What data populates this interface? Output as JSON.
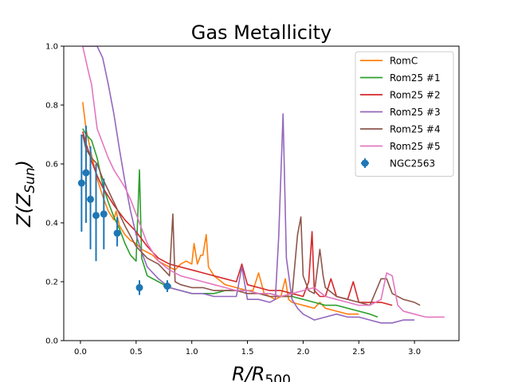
{
  "chart_data": {
    "type": "line",
    "title": "Gas Metallicity",
    "xlabel": "R/R500",
    "ylabel": "Z(Zsun)",
    "xlim": [
      -0.15,
      3.4
    ],
    "ylim": [
      0.0,
      1.0
    ],
    "xticks": [
      0.0,
      0.5,
      1.0,
      1.5,
      2.0,
      2.5,
      3.0
    ],
    "xtick_labels": [
      "0.0",
      "0.5",
      "1.0",
      "1.5",
      "2.0",
      "2.5",
      "3.0"
    ],
    "yticks": [
      0.0,
      0.2,
      0.4,
      0.6,
      0.8,
      1.0
    ],
    "ytick_labels": [
      "0.0",
      "0.2",
      "0.4",
      "0.6",
      "0.8",
      "1.0"
    ],
    "grid": false,
    "legend_position": "top-right",
    "series": [
      {
        "name": "RomC",
        "color": "#ff7f0e",
        "x": [
          0.02,
          0.05,
          0.1,
          0.15,
          0.2,
          0.25,
          0.3,
          0.32,
          0.35,
          0.4,
          0.45,
          0.5,
          0.55,
          0.6,
          0.65,
          0.7,
          0.75,
          0.8,
          0.85,
          0.9,
          0.95,
          1.0,
          1.02,
          1.05,
          1.08,
          1.1,
          1.13,
          1.15,
          1.2,
          1.3,
          1.4,
          1.5,
          1.55,
          1.6,
          1.65,
          1.7,
          1.75,
          1.8,
          1.84,
          1.87,
          1.9,
          2.0,
          2.1,
          2.15,
          2.2,
          2.3,
          2.4,
          2.5
        ],
        "y": [
          0.81,
          0.72,
          0.63,
          0.55,
          0.49,
          0.44,
          0.41,
          0.44,
          0.39,
          0.36,
          0.34,
          0.33,
          0.31,
          0.3,
          0.29,
          0.27,
          0.26,
          0.25,
          0.24,
          0.26,
          0.27,
          0.26,
          0.33,
          0.26,
          0.29,
          0.29,
          0.36,
          0.25,
          0.22,
          0.19,
          0.18,
          0.17,
          0.17,
          0.23,
          0.16,
          0.15,
          0.14,
          0.15,
          0.21,
          0.14,
          0.13,
          0.12,
          0.11,
          0.13,
          0.11,
          0.1,
          0.09,
          0.09
        ]
      },
      {
        "name": "Rom25 #1",
        "color": "#2ca02c",
        "x": [
          0.02,
          0.05,
          0.1,
          0.15,
          0.2,
          0.25,
          0.3,
          0.35,
          0.4,
          0.45,
          0.5,
          0.53,
          0.55,
          0.6,
          0.7,
          0.8,
          0.9,
          1.0,
          1.1,
          1.2,
          1.3,
          1.4,
          1.5,
          1.6,
          1.7,
          1.8,
          1.9,
          2.0,
          2.1,
          2.2,
          2.3,
          2.4,
          2.5,
          2.6,
          2.67
        ],
        "y": [
          0.72,
          0.7,
          0.68,
          0.62,
          0.53,
          0.47,
          0.42,
          0.38,
          0.33,
          0.29,
          0.27,
          0.58,
          0.28,
          0.22,
          0.2,
          0.18,
          0.17,
          0.16,
          0.16,
          0.16,
          0.17,
          0.17,
          0.17,
          0.16,
          0.16,
          0.15,
          0.15,
          0.14,
          0.13,
          0.12,
          0.12,
          0.11,
          0.1,
          0.09,
          0.08
        ]
      },
      {
        "name": "Rom25 #2",
        "color": "#d62728",
        "x": [
          0.02,
          0.05,
          0.1,
          0.15,
          0.2,
          0.3,
          0.4,
          0.5,
          0.6,
          0.7,
          0.8,
          0.9,
          1.0,
          1.1,
          1.2,
          1.3,
          1.4,
          1.45,
          1.5,
          1.6,
          1.7,
          1.8,
          1.9,
          2.0,
          2.05,
          2.08,
          2.1,
          2.15,
          2.2,
          2.25,
          2.3,
          2.4,
          2.45,
          2.5,
          2.6,
          2.7,
          2.8
        ],
        "y": [
          0.71,
          0.67,
          0.61,
          0.56,
          0.52,
          0.46,
          0.41,
          0.37,
          0.32,
          0.28,
          0.26,
          0.25,
          0.24,
          0.23,
          0.22,
          0.21,
          0.2,
          0.26,
          0.19,
          0.18,
          0.17,
          0.17,
          0.16,
          0.15,
          0.2,
          0.37,
          0.17,
          0.15,
          0.15,
          0.21,
          0.15,
          0.14,
          0.2,
          0.13,
          0.13,
          0.13,
          0.12
        ]
      },
      {
        "name": "Rom25 #3",
        "color": "#9467bd",
        "x": [
          0.02,
          0.05,
          0.1,
          0.15,
          0.2,
          0.25,
          0.3,
          0.35,
          0.4,
          0.45,
          0.5,
          0.55,
          0.6,
          0.7,
          0.8,
          0.9,
          1.0,
          1.1,
          1.2,
          1.3,
          1.4,
          1.45,
          1.5,
          1.6,
          1.7,
          1.75,
          1.78,
          1.82,
          1.85,
          1.9,
          1.95,
          2.0,
          2.1,
          2.2,
          2.3,
          2.4,
          2.5,
          2.6,
          2.7,
          2.8,
          2.9,
          3.0
        ],
        "y": [
          1.0,
          1.0,
          1.0,
          1.0,
          0.96,
          0.87,
          0.77,
          0.65,
          0.54,
          0.44,
          0.36,
          0.3,
          0.25,
          0.21,
          0.18,
          0.17,
          0.16,
          0.16,
          0.15,
          0.15,
          0.15,
          0.25,
          0.14,
          0.14,
          0.13,
          0.14,
          0.35,
          0.77,
          0.28,
          0.14,
          0.11,
          0.09,
          0.07,
          0.08,
          0.09,
          0.08,
          0.08,
          0.07,
          0.06,
          0.06,
          0.07,
          0.07
        ]
      },
      {
        "name": "Rom25 #4",
        "color": "#8c564b",
        "x": [
          0.02,
          0.05,
          0.1,
          0.15,
          0.2,
          0.3,
          0.4,
          0.5,
          0.6,
          0.7,
          0.8,
          0.83,
          0.85,
          0.9,
          1.0,
          1.1,
          1.2,
          1.3,
          1.4,
          1.5,
          1.6,
          1.7,
          1.8,
          1.9,
          1.95,
          1.98,
          2.0,
          2.05,
          2.1,
          2.15,
          2.18,
          2.2,
          2.3,
          2.4,
          2.5,
          2.6,
          2.7,
          2.75,
          2.8,
          2.9,
          3.0,
          3.05
        ],
        "y": [
          0.7,
          0.65,
          0.62,
          0.6,
          0.55,
          0.47,
          0.39,
          0.32,
          0.28,
          0.26,
          0.22,
          0.43,
          0.2,
          0.19,
          0.18,
          0.18,
          0.17,
          0.17,
          0.17,
          0.16,
          0.16,
          0.15,
          0.15,
          0.15,
          0.36,
          0.42,
          0.22,
          0.17,
          0.16,
          0.31,
          0.22,
          0.18,
          0.15,
          0.14,
          0.13,
          0.12,
          0.21,
          0.21,
          0.16,
          0.14,
          0.13,
          0.12
        ]
      },
      {
        "name": "Rom25 #5",
        "color": "#e377c2",
        "x": [
          0.02,
          0.05,
          0.08,
          0.1,
          0.15,
          0.2,
          0.25,
          0.3,
          0.35,
          0.4,
          0.45,
          0.5,
          0.55,
          0.6,
          0.7,
          0.8,
          0.9,
          1.0,
          1.1,
          1.2,
          1.3,
          1.4,
          1.5,
          1.6,
          1.7,
          1.8,
          1.9,
          2.0,
          2.1,
          2.2,
          2.3,
          2.4,
          2.5,
          2.6,
          2.7,
          2.75,
          2.8,
          2.85,
          2.9,
          3.0,
          3.1,
          3.2,
          3.27
        ],
        "y": [
          1.0,
          0.95,
          0.9,
          0.87,
          0.72,
          0.67,
          0.62,
          0.58,
          0.55,
          0.52,
          0.48,
          0.43,
          0.38,
          0.33,
          0.27,
          0.24,
          0.22,
          0.21,
          0.2,
          0.19,
          0.18,
          0.17,
          0.17,
          0.16,
          0.16,
          0.15,
          0.16,
          0.17,
          0.18,
          0.15,
          0.14,
          0.13,
          0.12,
          0.12,
          0.14,
          0.23,
          0.22,
          0.12,
          0.1,
          0.09,
          0.08,
          0.08,
          0.08
        ]
      }
    ],
    "errorbar_series": {
      "name": "NGC2563",
      "color": "#1f77b4",
      "points": [
        {
          "x": 0.01,
          "y": 0.535,
          "ylo": 0.37,
          "yhi": 0.7
        },
        {
          "x": 0.05,
          "y": 0.57,
          "ylo": 0.4,
          "yhi": 0.73
        },
        {
          "x": 0.09,
          "y": 0.48,
          "ylo": 0.31,
          "yhi": 0.66
        },
        {
          "x": 0.14,
          "y": 0.425,
          "ylo": 0.27,
          "yhi": 0.6
        },
        {
          "x": 0.21,
          "y": 0.43,
          "ylo": 0.31,
          "yhi": 0.55
        },
        {
          "x": 0.33,
          "y": 0.365,
          "ylo": 0.32,
          "yhi": 0.42
        },
        {
          "x": 0.53,
          "y": 0.18,
          "ylo": 0.155,
          "yhi": 0.205
        },
        {
          "x": 0.78,
          "y": 0.185,
          "ylo": 0.165,
          "yhi": 0.205
        }
      ]
    }
  }
}
